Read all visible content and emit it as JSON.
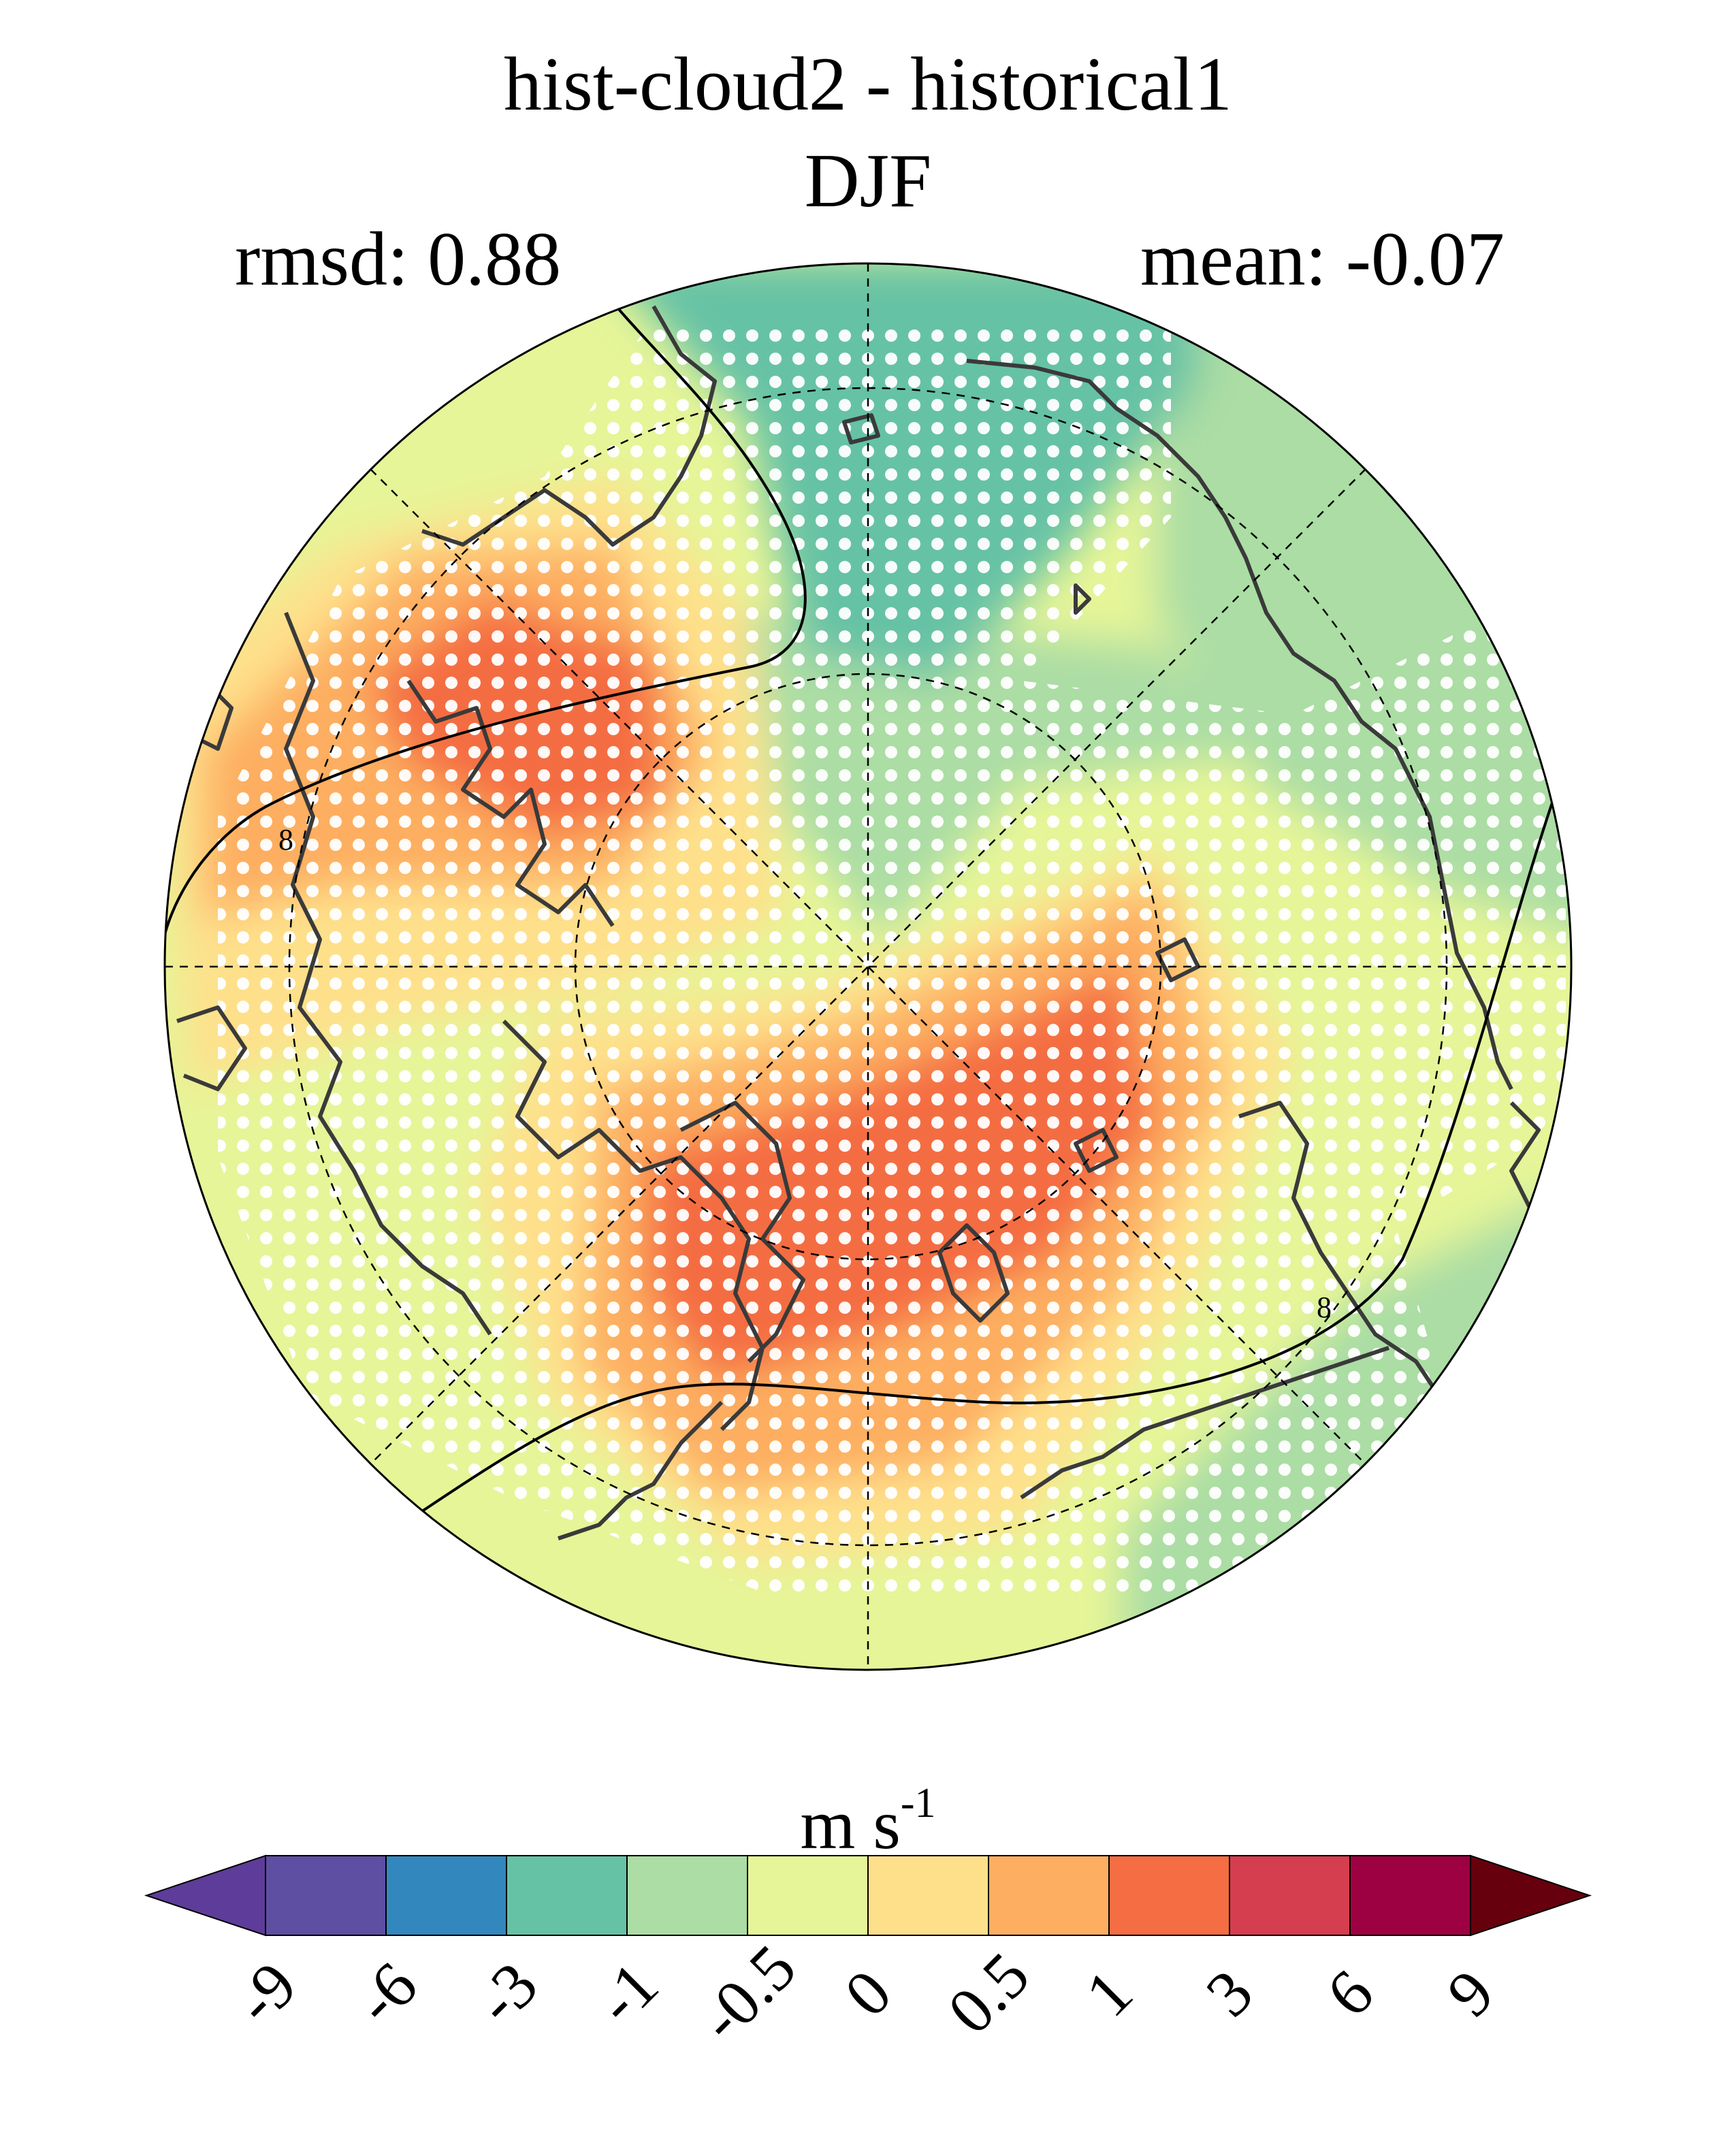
{
  "header": {
    "title_line1": "hist-cloud2 - historical1",
    "title_line2": "DJF",
    "rmsd": "rmsd: 0.88",
    "mean": "mean: -0.07"
  },
  "colorbar": {
    "units_base": "m s",
    "units_exp": "-1",
    "ticks": [
      "-9",
      "-6",
      "-3",
      "-1",
      "-0.5",
      "0",
      "0.5",
      "1",
      "3",
      "6",
      "9"
    ],
    "colors": [
      "#5e3c99",
      "#5e4fa2",
      "#3288bd",
      "#66c2a5",
      "#abdda4",
      "#e6f598",
      "#fee08b",
      "#fdae61",
      "#f46d43",
      "#d53e4f",
      "#9e0142",
      "#67000d"
    ]
  },
  "map": {
    "projection": "north-polar-stereographic",
    "stippling": "white dots",
    "contour_label": "8"
  }
}
